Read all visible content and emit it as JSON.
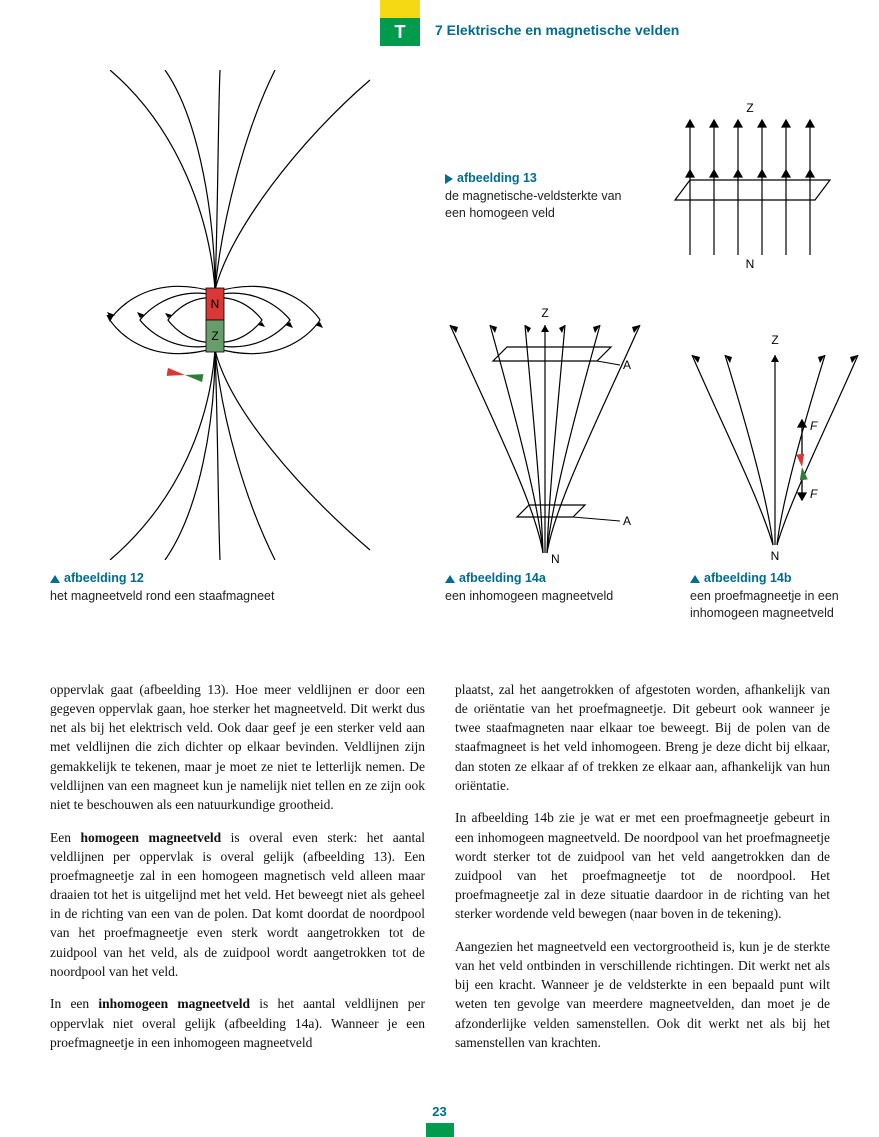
{
  "header": {
    "badge_letter": "T",
    "chapter_title": "7  Elektrische en magnetische velden",
    "badge_yellow": "#f4d914",
    "badge_green": "#009b4c",
    "title_color": "#006c8f"
  },
  "fig12": {
    "caption_title": "afbeelding 12",
    "caption_text": "het magneetveld rond een staafmagneet",
    "magnet": {
      "n_color": "#d93936",
      "z_color": "#679d6a",
      "n_label": "N",
      "z_label": "Z"
    },
    "compass": {
      "n_color": "#d93936",
      "z_color": "#2f7d3a"
    },
    "stroke": "#000000"
  },
  "fig13": {
    "caption_title": "afbeelding 13",
    "caption_text": "de magnetische-veldsterkte van een homogeen veld",
    "label_top": "Z",
    "label_bottom": "N",
    "stroke": "#000000",
    "arrow_count": 6
  },
  "fig14a": {
    "caption_title": "afbeelding 14a",
    "caption_text": "een inhomogeen magneetveld",
    "label_Z": "Z",
    "label_N": "N",
    "label_A": "A",
    "stroke": "#000000"
  },
  "fig14b": {
    "caption_title": "afbeelding 14b",
    "caption_text": "een proefmagneetje in een inhomogeen magneetveld",
    "label_Z": "Z",
    "label_N": "N",
    "label_F": "F",
    "compass": {
      "n_color": "#d93936",
      "z_color": "#2f7d3a"
    },
    "stroke": "#000000"
  },
  "body": {
    "col1_p1": "oppervlak gaat (afbeelding 13). Hoe meer veldlijnen er door een gegeven oppervlak gaan, hoe sterker het magneetveld. Dit werkt dus net als bij het elektrisch veld. Ook daar geef je een sterker veld aan met veldlijnen die zich dichter op elkaar bevinden. Veldlijnen zijn gemakkelijk te tekenen, maar je moet ze niet te letterlijk nemen. De veldlijnen van een magneet kun je namelijk niet tellen en ze zijn ook niet te beschouwen als een natuurkundige grootheid.",
    "col1_p2_a": "Een ",
    "col1_p2_b": "homogeen magneetveld",
    "col1_p2_c": " is overal even sterk: het aantal veldlijnen per oppervlak is overal gelijk (afbeelding 13). Een proefmagneetje zal in een homogeen magnetisch veld alleen maar draaien tot het is uitgelijnd met het veld. Het beweegt niet als geheel in de richting van een van de polen. Dat komt doordat de noordpool van het proefmagneetje even sterk wordt aangetrokken tot de zuidpool van het veld, als de zuidpool wordt aangetrokken tot de noordpool van het veld.",
    "col1_p3_a": "In een ",
    "col1_p3_b": "inhomogeen magneetveld",
    "col1_p3_c": " is het aantal veldlijnen per oppervlak niet overal gelijk (afbeelding 14a). Wanneer je een proefmagneetje in een inhomogeen magneetveld",
    "col2_p1": "plaatst, zal het aangetrokken of afgestoten worden, afhankelijk van de oriëntatie van het proefmagneetje. Dit gebeurt ook wanneer je twee staafmagneten naar elkaar toe beweegt. Bij de polen van de staafmagneet is het veld inhomogeen. Breng je deze dicht bij elkaar, dan stoten ze elkaar af of trekken ze elkaar aan, afhankelijk van hun oriëntatie.",
    "col2_p2": "In afbeelding 14b zie je wat er met een proefmagneetje gebeurt in een inhomogeen magneetveld. De noordpool van het proefmagneetje wordt sterker tot de zuidpool van het veld aangetrokken dan de zuidpool van het proefmagneetje tot de noordpool. Het proefmagneetje zal in deze situatie daardoor in de richting van het sterker wordende veld bewegen (naar boven in de tekening).",
    "col2_p3": "Aangezien het magneetveld een vectorgrootheid is, kun je de sterkte van het veld ontbinden in verschillende richtingen. Dit werkt net als bij een kracht. Wanneer je de veldsterkte in een bepaald punt wilt weten ten gevolge van meerdere magneetvelden, dan moet je de afzonderlijke velden samenstellen. Ook dit werkt net als bij het samenstellen van krachten."
  },
  "page_number": "23"
}
